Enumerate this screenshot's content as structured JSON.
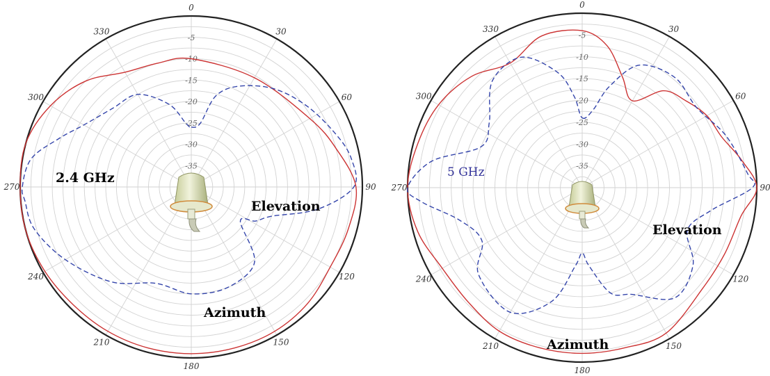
{
  "chart_data": [
    {
      "type": "polar-line",
      "title": "2.4 GHz",
      "title_color": "#000000",
      "radial_range_db": [
        -40,
        0
      ],
      "radial_tick_labels": [
        "-5",
        "-10",
        "-15",
        "-20",
        "-25",
        "-30",
        "-35"
      ],
      "angle_tick_labels": [
        "0",
        "30",
        "60",
        "90",
        "120",
        "150",
        "180",
        "210",
        "240",
        "270",
        "300",
        "330"
      ],
      "annotations": [
        "Elevation",
        "Azimuth"
      ],
      "series": [
        {
          "name": "Azimuth",
          "color": "#cc3333",
          "style": "solid",
          "points": [
            [
              0,
              -10
            ],
            [
              30,
              -10.5
            ],
            [
              60,
              -8
            ],
            [
              75,
              -5
            ],
            [
              90,
              -1.5
            ],
            [
              105,
              -2
            ],
            [
              120,
              -2.5
            ],
            [
              135,
              -1.5
            ],
            [
              150,
              -1
            ],
            [
              165,
              -1
            ],
            [
              180,
              -1
            ],
            [
              195,
              -1
            ],
            [
              210,
              -1
            ],
            [
              225,
              -1
            ],
            [
              240,
              -0.5
            ],
            [
              255,
              0
            ],
            [
              270,
              0
            ],
            [
              285,
              0
            ],
            [
              300,
              -2
            ],
            [
              315,
              -5
            ],
            [
              330,
              -9
            ],
            [
              345,
              -10
            ]
          ]
        },
        {
          "name": "Elevation",
          "color": "#3344aa",
          "style": "dashed",
          "points": [
            [
              0,
              -26
            ],
            [
              8,
              -25
            ],
            [
              15,
              -18
            ],
            [
              25,
              -14
            ],
            [
              40,
              -10
            ],
            [
              55,
              -7
            ],
            [
              70,
              -4
            ],
            [
              80,
              -2
            ],
            [
              90,
              -2
            ],
            [
              100,
              -10
            ],
            [
              110,
              -20
            ],
            [
              118,
              -23
            ],
            [
              125,
              -26
            ],
            [
              140,
              -17
            ],
            [
              160,
              -15
            ],
            [
              180,
              -15
            ],
            [
              200,
              -16
            ],
            [
              220,
              -11
            ],
            [
              240,
              -6
            ],
            [
              255,
              -2
            ],
            [
              265,
              -1
            ],
            [
              270,
              -0.5
            ],
            [
              280,
              -2
            ],
            [
              290,
              -7
            ],
            [
              300,
              -11
            ],
            [
              315,
              -14
            ],
            [
              330,
              -15
            ],
            [
              345,
              -20
            ],
            [
              355,
              -25
            ]
          ]
        }
      ]
    },
    {
      "type": "polar-line",
      "title": "5 GHz",
      "title_color": "#333399",
      "radial_range_db": [
        -40,
        0
      ],
      "radial_tick_labels": [
        "-5",
        "-10",
        "-15",
        "-20",
        "-25",
        "-30",
        "-35"
      ],
      "angle_tick_labels": [
        "0",
        "30",
        "60",
        "90",
        "120",
        "150",
        "180",
        "210",
        "240",
        "270",
        "300",
        "330"
      ],
      "annotations": [
        "Elevation",
        "Azimuth"
      ],
      "series": [
        {
          "name": "Azimuth",
          "color": "#cc3333",
          "style": "solid",
          "points": [
            [
              0,
              -4
            ],
            [
              10,
              -7
            ],
            [
              20,
              -13
            ],
            [
              30,
              -17
            ],
            [
              40,
              -11
            ],
            [
              50,
              -9
            ],
            [
              60,
              -7
            ],
            [
              70,
              -6
            ],
            [
              80,
              -3
            ],
            [
              90,
              0
            ],
            [
              100,
              -3
            ],
            [
              115,
              -4
            ],
            [
              130,
              -4
            ],
            [
              150,
              -1.5
            ],
            [
              165,
              -2
            ],
            [
              180,
              -2
            ],
            [
              195,
              -2
            ],
            [
              210,
              -2
            ],
            [
              225,
              -3
            ],
            [
              240,
              -3
            ],
            [
              255,
              -1
            ],
            [
              270,
              0
            ],
            [
              285,
              -1
            ],
            [
              300,
              -2
            ],
            [
              315,
              -4
            ],
            [
              330,
              -7
            ],
            [
              345,
              -4
            ]
          ]
        },
        {
          "name": "Elevation",
          "color": "#3344aa",
          "style": "dashed",
          "points": [
            [
              0,
              -24
            ],
            [
              8,
              -22
            ],
            [
              15,
              -16
            ],
            [
              25,
              -9
            ],
            [
              40,
              -7
            ],
            [
              55,
              -8
            ],
            [
              70,
              -5
            ],
            [
              85,
              -2
            ],
            [
              90,
              -1
            ],
            [
              100,
              -10
            ],
            [
              112,
              -14
            ],
            [
              125,
              -9
            ],
            [
              140,
              -7
            ],
            [
              155,
              -13
            ],
            [
              165,
              -15
            ],
            [
              175,
              -22
            ],
            [
              180,
              -25
            ],
            [
              185,
              -22
            ],
            [
              195,
              -13
            ],
            [
              210,
              -7
            ],
            [
              230,
              -9
            ],
            [
              242,
              -14
            ],
            [
              255,
              -11
            ],
            [
              265,
              -3
            ],
            [
              270,
              0
            ],
            [
              280,
              -5
            ],
            [
              292,
              -15
            ],
            [
              305,
              -14
            ],
            [
              320,
              -8
            ],
            [
              335,
              -7
            ],
            [
              348,
              -13
            ],
            [
              355,
              -19
            ]
          ]
        }
      ]
    }
  ]
}
